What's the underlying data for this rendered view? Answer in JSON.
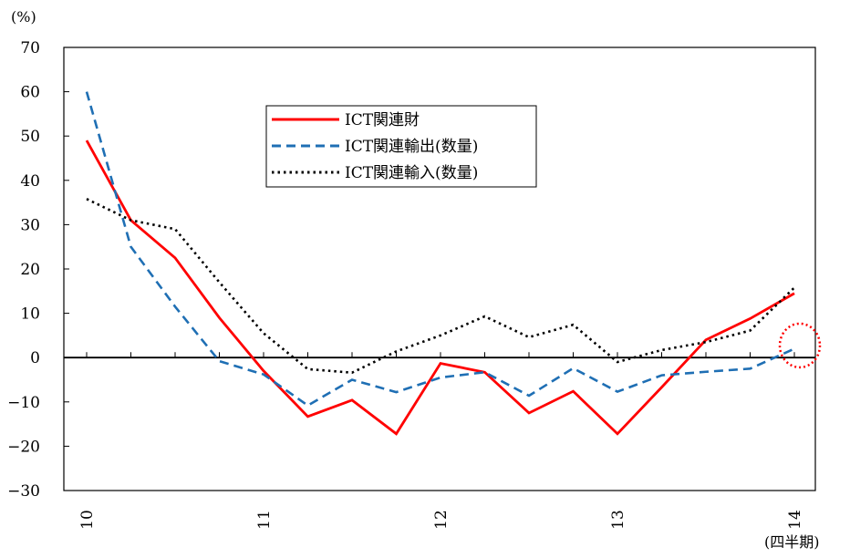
{
  "chart_data": {
    "type": "line",
    "y_unit": "(%)",
    "x_unit": "(四半期)",
    "ylim": [
      -30,
      70
    ],
    "yticks": [
      70,
      60,
      50,
      40,
      30,
      20,
      10,
      0,
      -10,
      -20,
      -30
    ],
    "ytick_labels": [
      "70",
      "60",
      "50",
      "40",
      "30",
      "20",
      "10",
      "0",
      "−10",
      "−20",
      "−30"
    ],
    "x": [
      0,
      1,
      2,
      3,
      4,
      5,
      6,
      7,
      8,
      9,
      10,
      11,
      12,
      13,
      14,
      15,
      16
    ],
    "xtick_positions": [
      0,
      4,
      8,
      12,
      16
    ],
    "xtick_labels": [
      "10",
      "11",
      "12",
      "13",
      "14"
    ],
    "grid": false,
    "legend_position": "upper-center",
    "series": [
      {
        "name": "ICT関連財",
        "color": "#ff0000",
        "style": "solid",
        "values": [
          49,
          31,
          22.5,
          9,
          -3,
          -13.3,
          -9.6,
          -17.2,
          -1.3,
          -3.3,
          -12.5,
          -7.6,
          -17.2,
          -6.7,
          4,
          8.8,
          14.5
        ]
      },
      {
        "name": "ICT関連輸出(数量)",
        "color": "#1f6fb4",
        "style": "dashed",
        "values": [
          60,
          25,
          11.5,
          -0.8,
          -3.8,
          -10.8,
          -5,
          -7.8,
          -4.5,
          -3.3,
          -8.6,
          -2.4,
          -7.7,
          -4,
          -3.2,
          -2.5,
          2
        ]
      },
      {
        "name": "ICT関連輸入(数量)",
        "color": "#000000",
        "style": "dotted",
        "values": [
          35.8,
          31,
          29,
          17,
          5.5,
          -2.6,
          -3.4,
          1.4,
          5,
          9.3,
          4.6,
          7.4,
          -1,
          1.7,
          3.5,
          6.1,
          15.8
        ]
      }
    ],
    "annotation": {
      "type": "circle-highlight",
      "x": 16,
      "y": 1.5,
      "color": "#ff0000",
      "style": "dotted"
    }
  }
}
